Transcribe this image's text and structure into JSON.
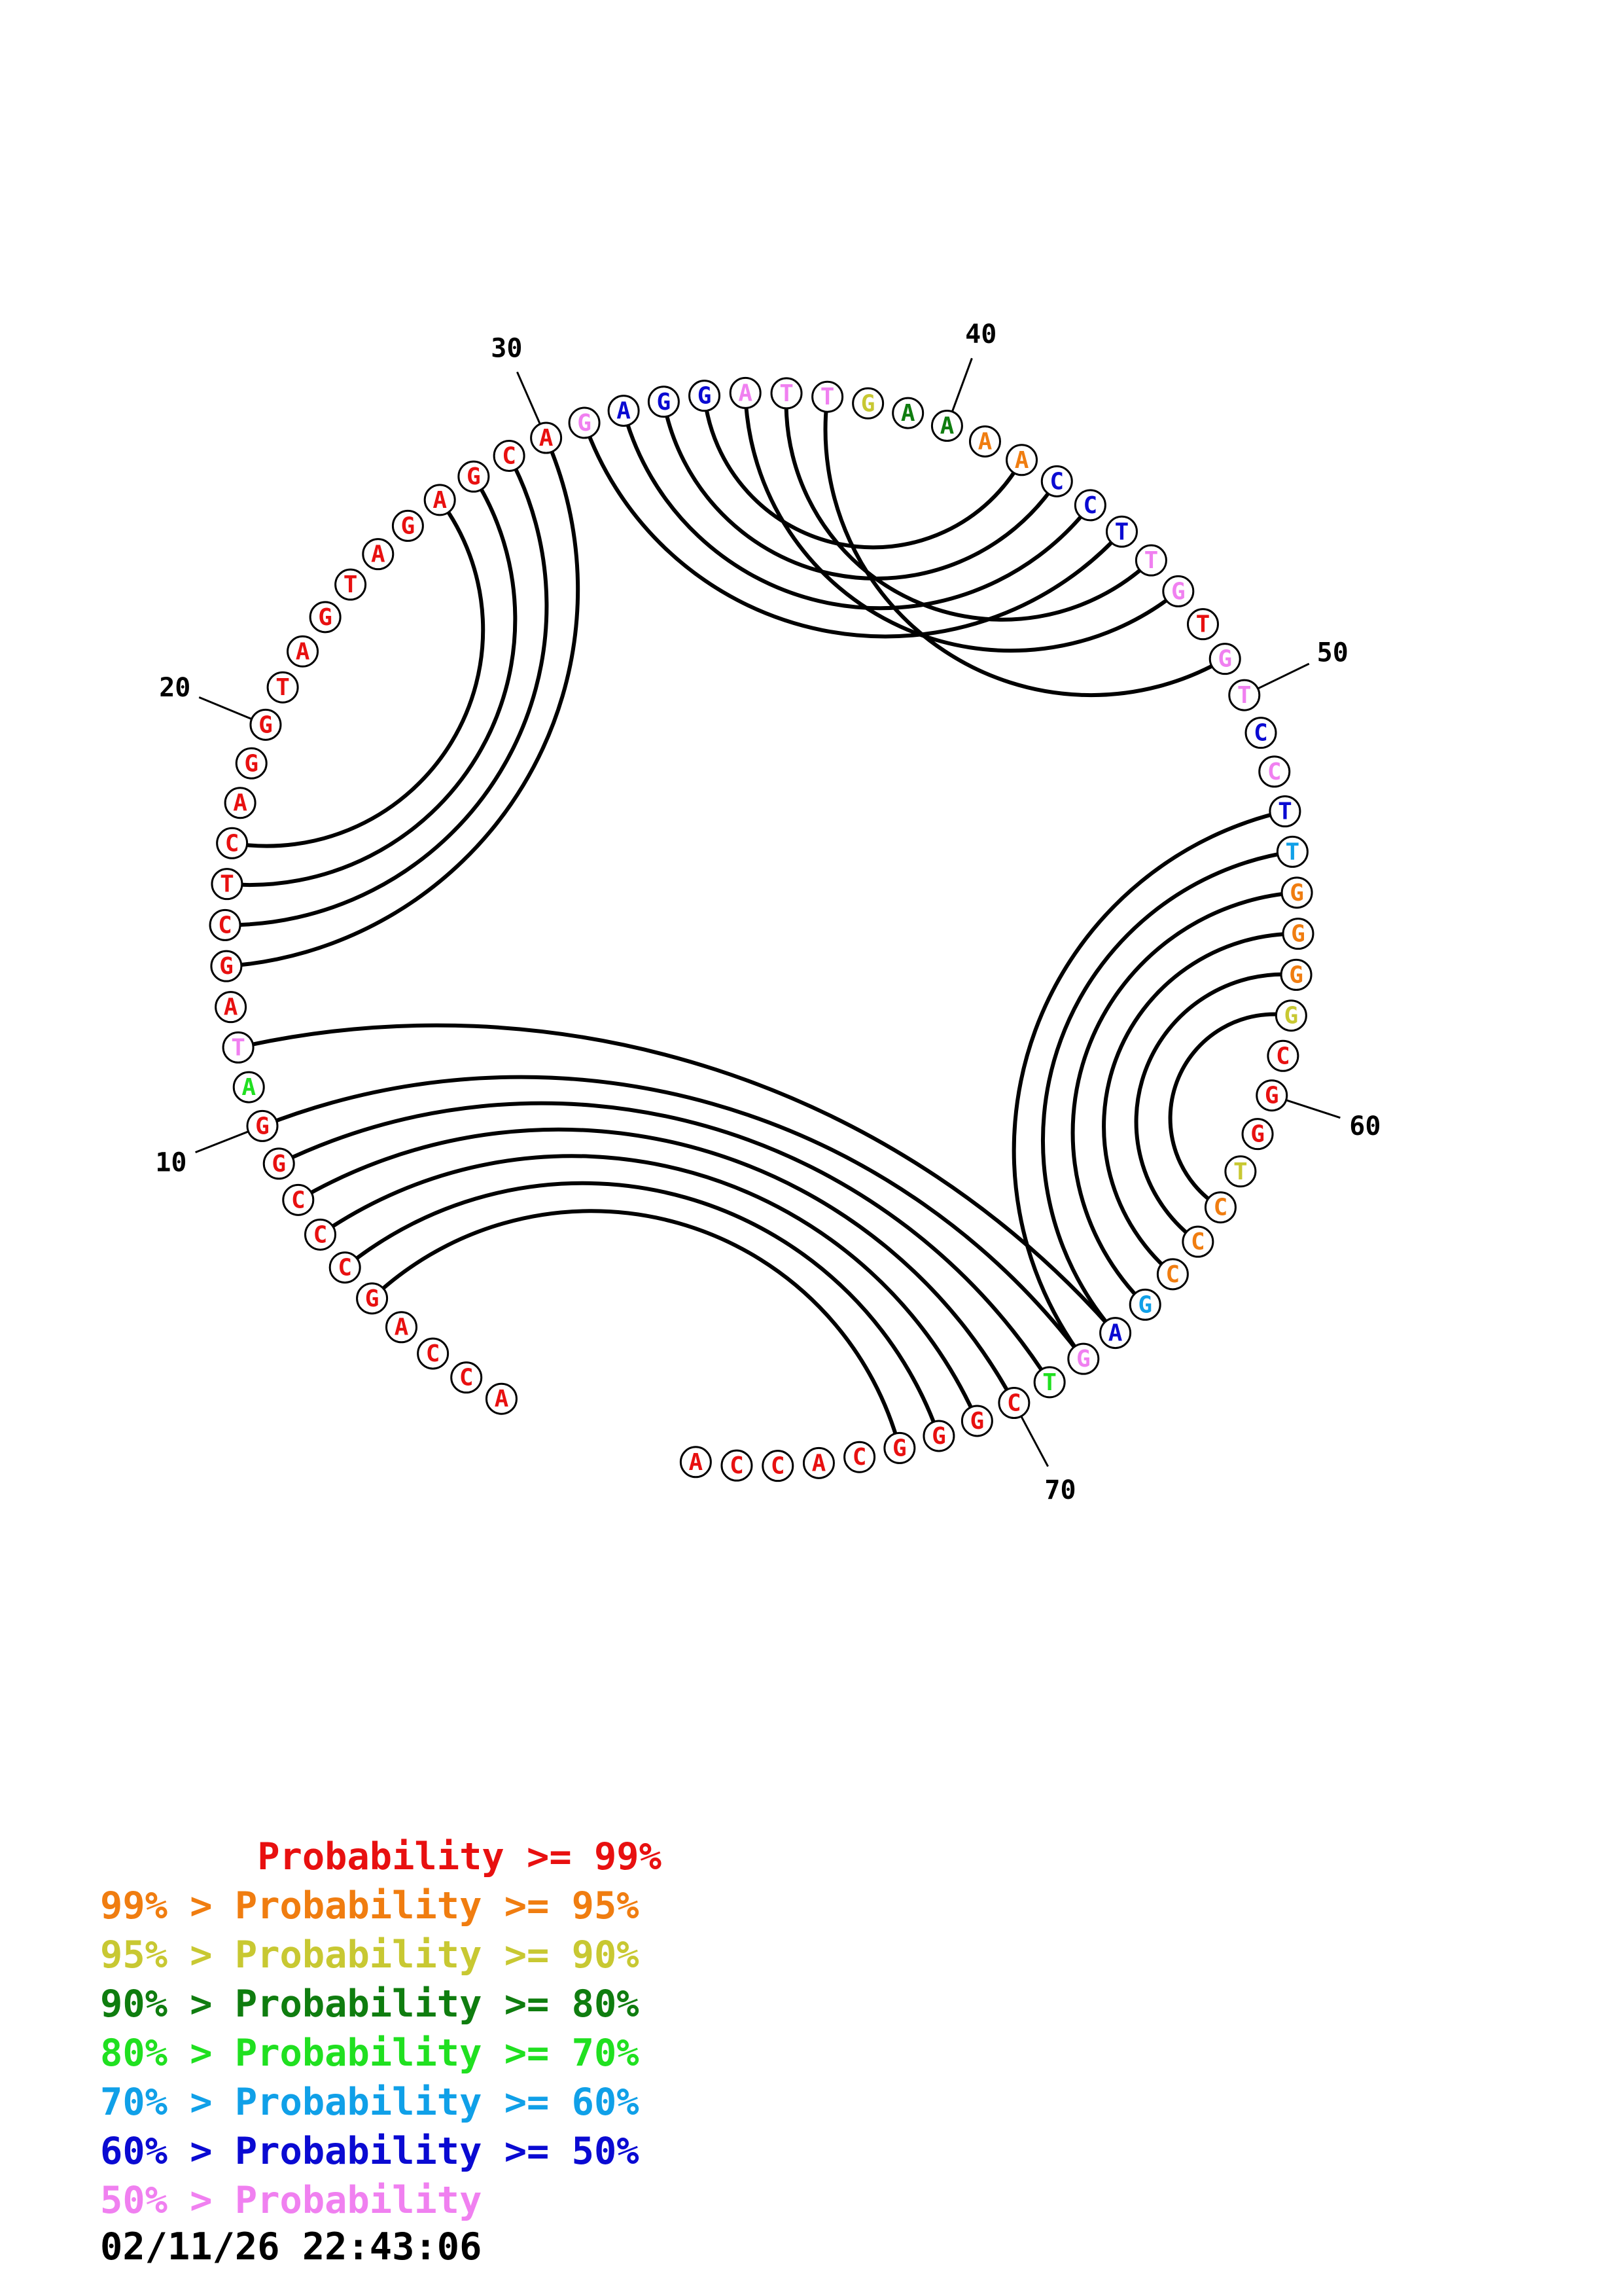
{
  "diagram": {
    "sequence": [
      {
        "n": 1,
        "base": "A",
        "color": "red"
      },
      {
        "n": 2,
        "base": "C",
        "color": "red"
      },
      {
        "n": 3,
        "base": "C",
        "color": "red"
      },
      {
        "n": 4,
        "base": "A",
        "color": "red"
      },
      {
        "n": 5,
        "base": "G",
        "color": "red"
      },
      {
        "n": 6,
        "base": "C",
        "color": "red"
      },
      {
        "n": 7,
        "base": "C",
        "color": "red"
      },
      {
        "n": 8,
        "base": "C",
        "color": "red"
      },
      {
        "n": 9,
        "base": "G",
        "color": "red"
      },
      {
        "n": 10,
        "base": "G",
        "color": "red"
      },
      {
        "n": 11,
        "base": "A",
        "color": "green"
      },
      {
        "n": 12,
        "base": "T",
        "color": "pink"
      },
      {
        "n": 13,
        "base": "A",
        "color": "red"
      },
      {
        "n": 14,
        "base": "G",
        "color": "red"
      },
      {
        "n": 15,
        "base": "C",
        "color": "red"
      },
      {
        "n": 16,
        "base": "T",
        "color": "red"
      },
      {
        "n": 17,
        "base": "C",
        "color": "red"
      },
      {
        "n": 18,
        "base": "A",
        "color": "red"
      },
      {
        "n": 19,
        "base": "G",
        "color": "red"
      },
      {
        "n": 20,
        "base": "G",
        "color": "red"
      },
      {
        "n": 21,
        "base": "T",
        "color": "red"
      },
      {
        "n": 22,
        "base": "A",
        "color": "red"
      },
      {
        "n": 23,
        "base": "G",
        "color": "red"
      },
      {
        "n": 24,
        "base": "T",
        "color": "red"
      },
      {
        "n": 25,
        "base": "A",
        "color": "red"
      },
      {
        "n": 26,
        "base": "G",
        "color": "red"
      },
      {
        "n": 27,
        "base": "A",
        "color": "red"
      },
      {
        "n": 28,
        "base": "G",
        "color": "red"
      },
      {
        "n": 29,
        "base": "C",
        "color": "red"
      },
      {
        "n": 30,
        "base": "A",
        "color": "red"
      },
      {
        "n": 31,
        "base": "G",
        "color": "pink"
      },
      {
        "n": 32,
        "base": "A",
        "color": "blue"
      },
      {
        "n": 33,
        "base": "G",
        "color": "blue"
      },
      {
        "n": 34,
        "base": "G",
        "color": "blue"
      },
      {
        "n": 35,
        "base": "A",
        "color": "pink"
      },
      {
        "n": 36,
        "base": "T",
        "color": "pink"
      },
      {
        "n": 37,
        "base": "T",
        "color": "pink"
      },
      {
        "n": 38,
        "base": "G",
        "color": "yellow"
      },
      {
        "n": 39,
        "base": "A",
        "color": "darkgreen"
      },
      {
        "n": 40,
        "base": "A",
        "color": "darkgreen"
      },
      {
        "n": 41,
        "base": "A",
        "color": "orange"
      },
      {
        "n": 42,
        "base": "A",
        "color": "orange"
      },
      {
        "n": 43,
        "base": "C",
        "color": "blue"
      },
      {
        "n": 44,
        "base": "C",
        "color": "blue"
      },
      {
        "n": 45,
        "base": "T",
        "color": "blue"
      },
      {
        "n": 46,
        "base": "T",
        "color": "pink"
      },
      {
        "n": 47,
        "base": "G",
        "color": "pink"
      },
      {
        "n": 48,
        "base": "T",
        "color": "red"
      },
      {
        "n": 49,
        "base": "G",
        "color": "pink"
      },
      {
        "n": 50,
        "base": "T",
        "color": "pink"
      },
      {
        "n": 51,
        "base": "C",
        "color": "blue"
      },
      {
        "n": 52,
        "base": "C",
        "color": "pink"
      },
      {
        "n": 53,
        "base": "T",
        "color": "blue"
      },
      {
        "n": 54,
        "base": "T",
        "color": "cyan"
      },
      {
        "n": 55,
        "base": "G",
        "color": "orange"
      },
      {
        "n": 56,
        "base": "G",
        "color": "orange"
      },
      {
        "n": 57,
        "base": "G",
        "color": "orange"
      },
      {
        "n": 58,
        "base": "G",
        "color": "yellow"
      },
      {
        "n": 59,
        "base": "C",
        "color": "red"
      },
      {
        "n": 60,
        "base": "G",
        "color": "red"
      },
      {
        "n": 61,
        "base": "G",
        "color": "red"
      },
      {
        "n": 62,
        "base": "T",
        "color": "yellow"
      },
      {
        "n": 63,
        "base": "C",
        "color": "orange"
      },
      {
        "n": 64,
        "base": "C",
        "color": "orange"
      },
      {
        "n": 65,
        "base": "C",
        "color": "orange"
      },
      {
        "n": 66,
        "base": "G",
        "color": "cyan"
      },
      {
        "n": 67,
        "base": "A",
        "color": "blue"
      },
      {
        "n": 68,
        "base": "G",
        "color": "pink"
      },
      {
        "n": 69,
        "base": "T",
        "color": "green"
      },
      {
        "n": 70,
        "base": "C",
        "color": "red"
      },
      {
        "n": 71,
        "base": "G",
        "color": "red"
      },
      {
        "n": 72,
        "base": "G",
        "color": "red"
      },
      {
        "n": 73,
        "base": "G",
        "color": "red"
      },
      {
        "n": 74,
        "base": "C",
        "color": "red"
      },
      {
        "n": 75,
        "base": "A",
        "color": "red"
      },
      {
        "n": 76,
        "base": "C",
        "color": "red"
      },
      {
        "n": 77,
        "base": "C",
        "color": "red"
      },
      {
        "n": 78,
        "base": "A",
        "color": "red"
      }
    ],
    "pairs": [
      [
        5,
        73
      ],
      [
        6,
        72
      ],
      [
        7,
        71
      ],
      [
        8,
        70
      ],
      [
        9,
        69
      ],
      [
        10,
        68
      ],
      [
        12,
        67
      ],
      [
        14,
        30
      ],
      [
        15,
        29
      ],
      [
        16,
        28
      ],
      [
        17,
        27
      ],
      [
        31,
        45
      ],
      [
        32,
        44
      ],
      [
        33,
        43
      ],
      [
        34,
        42
      ],
      [
        35,
        47
      ],
      [
        36,
        46
      ],
      [
        37,
        49
      ],
      [
        53,
        68
      ],
      [
        54,
        67
      ],
      [
        55,
        66
      ],
      [
        56,
        65
      ],
      [
        57,
        64
      ],
      [
        58,
        63
      ]
    ],
    "number_labels": [
      {
        "n": 10,
        "text": "10"
      },
      {
        "n": 20,
        "text": "20"
      },
      {
        "n": 30,
        "text": "30"
      },
      {
        "n": 40,
        "text": "40"
      },
      {
        "n": 50,
        "text": "50"
      },
      {
        "n": 60,
        "text": "60"
      },
      {
        "n": 70,
        "text": "70"
      }
    ]
  },
  "colors": {
    "red": "#e81010",
    "orange": "#f07d10",
    "yellow": "#c8c832",
    "darkgreen": "#0f7d0f",
    "green": "#20e020",
    "cyan": "#10a0e8",
    "blue": "#0a0ad2",
    "pink": "#f080f0"
  },
  "legend": [
    {
      "text": "       Probability >= 99%",
      "color": "red"
    },
    {
      "text": "99% > Probability >= 95%",
      "color": "orange"
    },
    {
      "text": "95% > Probability >= 90%",
      "color": "yellow"
    },
    {
      "text": "90% > Probability >= 80%",
      "color": "darkgreen"
    },
    {
      "text": "80% > Probability >= 70%",
      "color": "green"
    },
    {
      "text": "70% > Probability >= 60%",
      "color": "cyan"
    },
    {
      "text": "60% > Probability >= 50%",
      "color": "blue"
    },
    {
      "text": "50% > Probability",
      "color": "pink"
    }
  ],
  "timestamp": "02/11/26 22:43:06"
}
